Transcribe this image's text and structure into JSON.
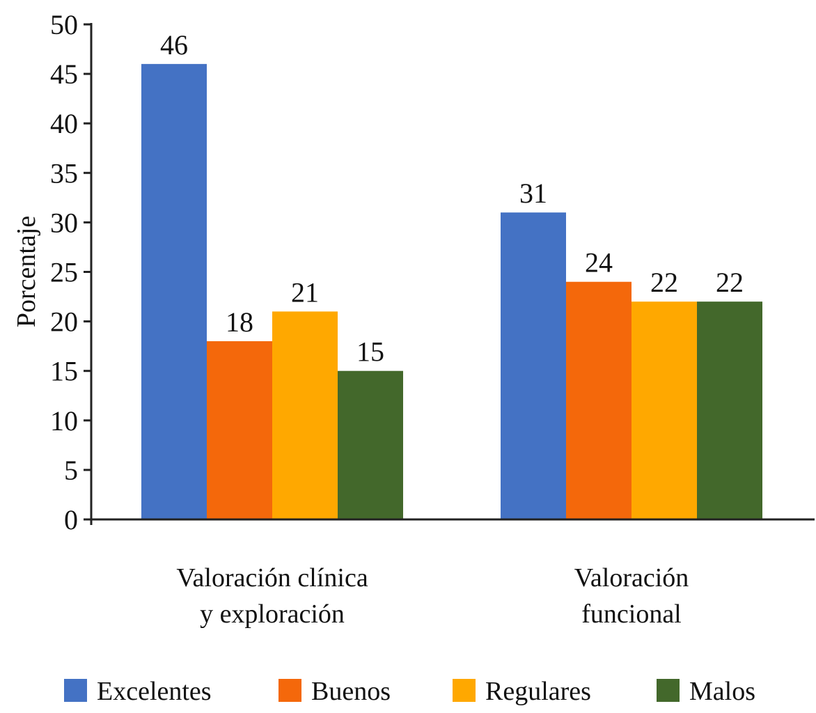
{
  "chart_data": {
    "type": "bar",
    "title": "",
    "xlabel": "",
    "ylabel": "Porcentaje",
    "ylim": [
      0,
      50
    ],
    "yticks": [
      0,
      5,
      10,
      15,
      20,
      25,
      30,
      35,
      40,
      45,
      50
    ],
    "grid": false,
    "legend_position": "bottom",
    "categories": [
      [
        "Valoración clínica",
        "y exploración"
      ],
      [
        "Valoración",
        "funcional"
      ]
    ],
    "series": [
      {
        "name": "Excelentes",
        "color": "#4472C4",
        "values": [
          46,
          31
        ]
      },
      {
        "name": "Buenos",
        "color": "#F4680B",
        "values": [
          18,
          24
        ]
      },
      {
        "name": "Regulares",
        "color": "#FFA800",
        "values": [
          21,
          22
        ]
      },
      {
        "name": "Malos",
        "color": "#43682B",
        "values": [
          15,
          22
        ]
      }
    ],
    "data_labels": true
  }
}
